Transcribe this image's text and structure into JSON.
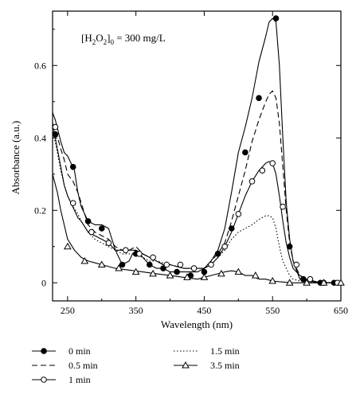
{
  "chart_data": {
    "type": "line",
    "xlabel": "Wavelength (nm)",
    "ylabel": "Absorbance (a.u.)",
    "xlim": [
      228,
      650
    ],
    "ylim": [
      -0.05,
      0.75
    ],
    "xticks": [
      250,
      350,
      450,
      550,
      650
    ],
    "xtick_labels": [
      "250",
      "350",
      "450",
      "550",
      "650"
    ],
    "yticks": [
      0,
      0.2,
      0.4,
      0.6
    ],
    "ytick_labels": [
      "0",
      "0.2",
      "0.4",
      "0.6"
    ],
    "grid": false,
    "legend_position": "bottom",
    "annotation": {
      "prefix": "[H",
      "sub1": "2",
      "mid": "O",
      "sub2": "2",
      "close": "]",
      "sub3": "0",
      "suffix": " = 300 mg/L"
    },
    "series": [
      {
        "name": "0 min",
        "style": "solid",
        "marker": "filled-circle",
        "x": [
          228,
          232,
          236,
          240,
          245,
          250,
          255,
          260,
          265,
          270,
          280,
          290,
          300,
          310,
          320,
          330,
          340,
          345,
          350,
          360,
          370,
          380,
          390,
          400,
          420,
          440,
          450,
          460,
          470,
          480,
          490,
          500,
          510,
          520,
          530,
          540,
          545,
          550,
          555,
          560,
          565,
          570,
          575,
          580,
          590,
          600,
          620,
          640,
          650
        ],
        "y": [
          0.47,
          0.45,
          0.42,
          0.39,
          0.36,
          0.35,
          0.33,
          0.31,
          0.25,
          0.21,
          0.17,
          0.16,
          0.16,
          0.15,
          0.09,
          0.05,
          0.06,
          0.08,
          0.09,
          0.07,
          0.05,
          0.04,
          0.04,
          0.03,
          0.03,
          0.03,
          0.04,
          0.06,
          0.09,
          0.15,
          0.25,
          0.36,
          0.43,
          0.51,
          0.61,
          0.68,
          0.72,
          0.73,
          0.72,
          0.6,
          0.4,
          0.22,
          0.12,
          0.06,
          0.01,
          0.005,
          0.0,
          0.0,
          0.0
        ],
        "marker_x": [
          232,
          258,
          280,
          300,
          330,
          350,
          370,
          390,
          410,
          430,
          450,
          470,
          490,
          510,
          530,
          555,
          575,
          595,
          620,
          640
        ],
        "marker_y": [
          0.41,
          0.32,
          0.17,
          0.15,
          0.05,
          0.08,
          0.05,
          0.04,
          0.03,
          0.02,
          0.03,
          0.08,
          0.15,
          0.36,
          0.51,
          0.73,
          0.1,
          0.01,
          0.0,
          0.0
        ]
      },
      {
        "name": "0.5 min",
        "style": "dashed",
        "marker": "none",
        "x": [
          228,
          234,
          240,
          245,
          250,
          258,
          265,
          270,
          280,
          290,
          300,
          310,
          320,
          330,
          340,
          350,
          360,
          370,
          380,
          390,
          400,
          420,
          440,
          450,
          460,
          470,
          480,
          490,
          500,
          510,
          520,
          530,
          540,
          545,
          550,
          555,
          560,
          565,
          570,
          575,
          580,
          590,
          600,
          620,
          650
        ],
        "y": [
          0.44,
          0.41,
          0.37,
          0.34,
          0.3,
          0.28,
          0.25,
          0.22,
          0.16,
          0.14,
          0.13,
          0.12,
          0.1,
          0.09,
          0.09,
          0.1,
          0.08,
          0.07,
          0.06,
          0.05,
          0.05,
          0.04,
          0.04,
          0.04,
          0.06,
          0.08,
          0.11,
          0.17,
          0.24,
          0.31,
          0.39,
          0.45,
          0.5,
          0.52,
          0.53,
          0.51,
          0.44,
          0.32,
          0.2,
          0.11,
          0.06,
          0.02,
          0.01,
          0.0,
          0.0
        ]
      },
      {
        "name": "1 min",
        "style": "solid",
        "marker": "open-circle",
        "x": [
          228,
          234,
          240,
          245,
          250,
          255,
          260,
          265,
          270,
          280,
          290,
          300,
          310,
          320,
          330,
          340,
          350,
          360,
          370,
          380,
          390,
          400,
          420,
          440,
          450,
          460,
          470,
          480,
          490,
          500,
          510,
          520,
          530,
          540,
          545,
          550,
          555,
          560,
          565,
          570,
          575,
          580,
          590,
          600,
          620,
          650
        ],
        "y": [
          0.44,
          0.38,
          0.32,
          0.27,
          0.24,
          0.22,
          0.2,
          0.18,
          0.17,
          0.14,
          0.13,
          0.12,
          0.11,
          0.09,
          0.09,
          0.09,
          0.09,
          0.08,
          0.07,
          0.06,
          0.05,
          0.05,
          0.04,
          0.04,
          0.04,
          0.05,
          0.07,
          0.1,
          0.14,
          0.19,
          0.24,
          0.28,
          0.31,
          0.33,
          0.335,
          0.33,
          0.3,
          0.24,
          0.17,
          0.11,
          0.07,
          0.04,
          0.02,
          0.01,
          0.0,
          0.0
        ],
        "marker_x": [
          232,
          258,
          285,
          310,
          335,
          355,
          375,
          395,
          415,
          435,
          460,
          480,
          500,
          520,
          535,
          550,
          565,
          585,
          605,
          625,
          645
        ],
        "marker_y": [
          0.43,
          0.22,
          0.14,
          0.11,
          0.09,
          0.08,
          0.07,
          0.05,
          0.05,
          0.04,
          0.05,
          0.1,
          0.19,
          0.28,
          0.31,
          0.33,
          0.21,
          0.05,
          0.01,
          0.0,
          0.0
        ]
      },
      {
        "name": "1.5 min",
        "style": "dotted",
        "marker": "none",
        "x": [
          228,
          234,
          240,
          245,
          250,
          258,
          265,
          270,
          280,
          290,
          300,
          310,
          320,
          330,
          340,
          350,
          360,
          370,
          380,
          400,
          420,
          440,
          450,
          460,
          470,
          480,
          490,
          500,
          510,
          520,
          530,
          540,
          545,
          550,
          555,
          560,
          565,
          570,
          575,
          580,
          590,
          600,
          620,
          650
        ],
        "y": [
          0.42,
          0.37,
          0.31,
          0.27,
          0.24,
          0.21,
          0.19,
          0.17,
          0.14,
          0.12,
          0.11,
          0.1,
          0.09,
          0.08,
          0.08,
          0.08,
          0.07,
          0.06,
          0.06,
          0.05,
          0.04,
          0.04,
          0.04,
          0.05,
          0.07,
          0.09,
          0.12,
          0.14,
          0.15,
          0.16,
          0.175,
          0.185,
          0.185,
          0.18,
          0.15,
          0.1,
          0.06,
          0.04,
          0.02,
          0.01,
          0.005,
          0.0,
          0.0,
          0.0
        ]
      },
      {
        "name": "3.5 min",
        "style": "solid",
        "marker": "open-triangle",
        "x": [
          228,
          235,
          240,
          245,
          250,
          260,
          270,
          280,
          290,
          300,
          320,
          340,
          360,
          380,
          400,
          420,
          440,
          460,
          480,
          490,
          500,
          510,
          520,
          530,
          540,
          550,
          560,
          580,
          600,
          620,
          650
        ],
        "y": [
          0.3,
          0.25,
          0.2,
          0.16,
          0.12,
          0.09,
          0.07,
          0.06,
          0.055,
          0.05,
          0.04,
          0.035,
          0.03,
          0.025,
          0.02,
          0.015,
          0.01,
          0.02,
          0.03,
          0.033,
          0.03,
          0.02,
          0.02,
          0.01,
          0.01,
          0.005,
          0.003,
          0.0,
          0.0,
          0.0,
          0.0
        ],
        "marker_x": [
          250,
          275,
          300,
          325,
          350,
          375,
          400,
          425,
          450,
          475,
          500,
          525,
          550,
          575,
          600,
          625,
          650
        ],
        "marker_y": [
          0.1,
          0.06,
          0.05,
          0.04,
          0.03,
          0.025,
          0.02,
          0.015,
          0.015,
          0.025,
          0.03,
          0.02,
          0.005,
          0.0,
          0.0,
          0.0,
          0.0
        ]
      }
    ]
  }
}
